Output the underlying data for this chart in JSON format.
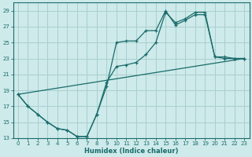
{
  "xlabel": "Humidex (Indice chaleur)",
  "bg_color": "#ceeaea",
  "grid_color": "#a8cfcf",
  "line_color": "#1a6b6b",
  "xlim": [
    -0.5,
    23.5
  ],
  "ylim": [
    13,
    30
  ],
  "xticks": [
    0,
    1,
    2,
    3,
    4,
    5,
    6,
    7,
    8,
    9,
    10,
    11,
    12,
    13,
    14,
    15,
    16,
    17,
    18,
    19,
    20,
    21,
    22,
    23
  ],
  "yticks": [
    13,
    15,
    17,
    19,
    21,
    23,
    25,
    27,
    29
  ],
  "line1_x": [
    0,
    1,
    2,
    3,
    4,
    5,
    6,
    7,
    8,
    9,
    10,
    11,
    12,
    13,
    14,
    15,
    16,
    17,
    18,
    19,
    20,
    21,
    22,
    23
  ],
  "line1_y": [
    18.5,
    17.0,
    16.0,
    15.0,
    14.2,
    14.0,
    13.2,
    13.2,
    16.0,
    19.5,
    25.0,
    25.2,
    25.2,
    26.5,
    26.5,
    29.0,
    27.2,
    27.8,
    28.5,
    28.5,
    23.2,
    23.0,
    23.0,
    23.0
  ],
  "line2_x": [
    0,
    1,
    2,
    3,
    4,
    5,
    6,
    7,
    8,
    9,
    10,
    11,
    12,
    13,
    14,
    15,
    16,
    17,
    18,
    19,
    20,
    21,
    22,
    23
  ],
  "line2_y": [
    18.5,
    17.0,
    16.0,
    15.0,
    14.2,
    14.0,
    13.2,
    13.2,
    16.0,
    20.0,
    22.0,
    22.2,
    22.5,
    23.5,
    25.0,
    28.8,
    27.5,
    28.0,
    28.8,
    28.8,
    23.2,
    23.2,
    23.0,
    23.0
  ],
  "line3_x": [
    0,
    23
  ],
  "line3_y": [
    18.5,
    23.0
  ]
}
